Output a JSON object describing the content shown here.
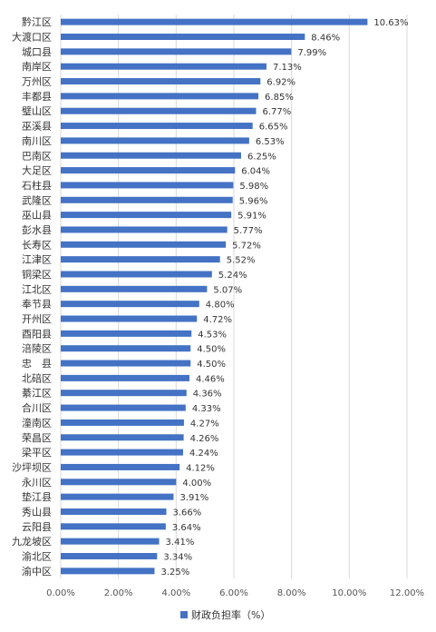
{
  "chart_data": {
    "type": "bar",
    "orientation": "horizontal",
    "title": "",
    "xlabel": "",
    "ylabel": "",
    "categories": [
      "黔江区",
      "大渡口区",
      "城口县",
      "南岸区",
      "万州区",
      "丰都县",
      "璧山区",
      "巫溪县",
      "南川区",
      "巴南区",
      "大足区",
      "石柱县",
      "武隆区",
      "巫山县",
      "彭水县",
      "长寿区",
      "江津区",
      "铜梁区",
      "江北区",
      "奉节县",
      "开州区",
      "酉阳县",
      "涪陵区",
      "忠　县",
      "北碚区",
      "綦江区",
      "合川区",
      "潼南区",
      "荣昌区",
      "梁平区",
      "沙坪坝区",
      "永川区",
      "垫江县",
      "秀山县",
      "云阳县",
      "九龙坡区",
      "渝北区",
      "渝中区"
    ],
    "series": [
      {
        "name": "财政负担率（%）",
        "values": [
          10.63,
          8.46,
          7.99,
          7.13,
          6.92,
          6.85,
          6.77,
          6.65,
          6.53,
          6.25,
          6.04,
          5.98,
          5.96,
          5.91,
          5.77,
          5.72,
          5.52,
          5.24,
          5.07,
          4.8,
          4.72,
          4.53,
          4.5,
          4.5,
          4.46,
          4.36,
          4.33,
          4.27,
          4.26,
          4.24,
          4.12,
          4.0,
          3.91,
          3.66,
          3.64,
          3.41,
          3.34,
          3.25
        ],
        "value_labels": [
          "10.63%",
          "8.46%",
          "7.99%",
          "7.13%",
          "6.92%",
          "6.85%",
          "6.77%",
          "6.65%",
          "6.53%",
          "6.25%",
          "6.04%",
          "5.98%",
          "5.96%",
          "5.91%",
          "5.77%",
          "5.72%",
          "5.52%",
          "5.24%",
          "5.07%",
          "4.80%",
          "4.72%",
          "4.53%",
          "4.50%",
          "4.50%",
          "4.46%",
          "4.36%",
          "4.33%",
          "4.27%",
          "4.26%",
          "4.24%",
          "4.12%",
          "4.00%",
          "3.91%",
          "3.66%",
          "3.64%",
          "3.41%",
          "3.34%",
          "3.25%"
        ],
        "color": "#4472c4"
      }
    ],
    "xlim": [
      0,
      12
    ],
    "xticks": [
      0,
      2,
      4,
      6,
      8,
      10,
      12
    ],
    "xtick_labels": [
      "0.00%",
      "2.00%",
      "4.00%",
      "6.00%",
      "8.00%",
      "10.00%",
      "12.00%"
    ],
    "grid": true,
    "grid_color": "#d9d9d9",
    "legend_position": "bottom"
  }
}
